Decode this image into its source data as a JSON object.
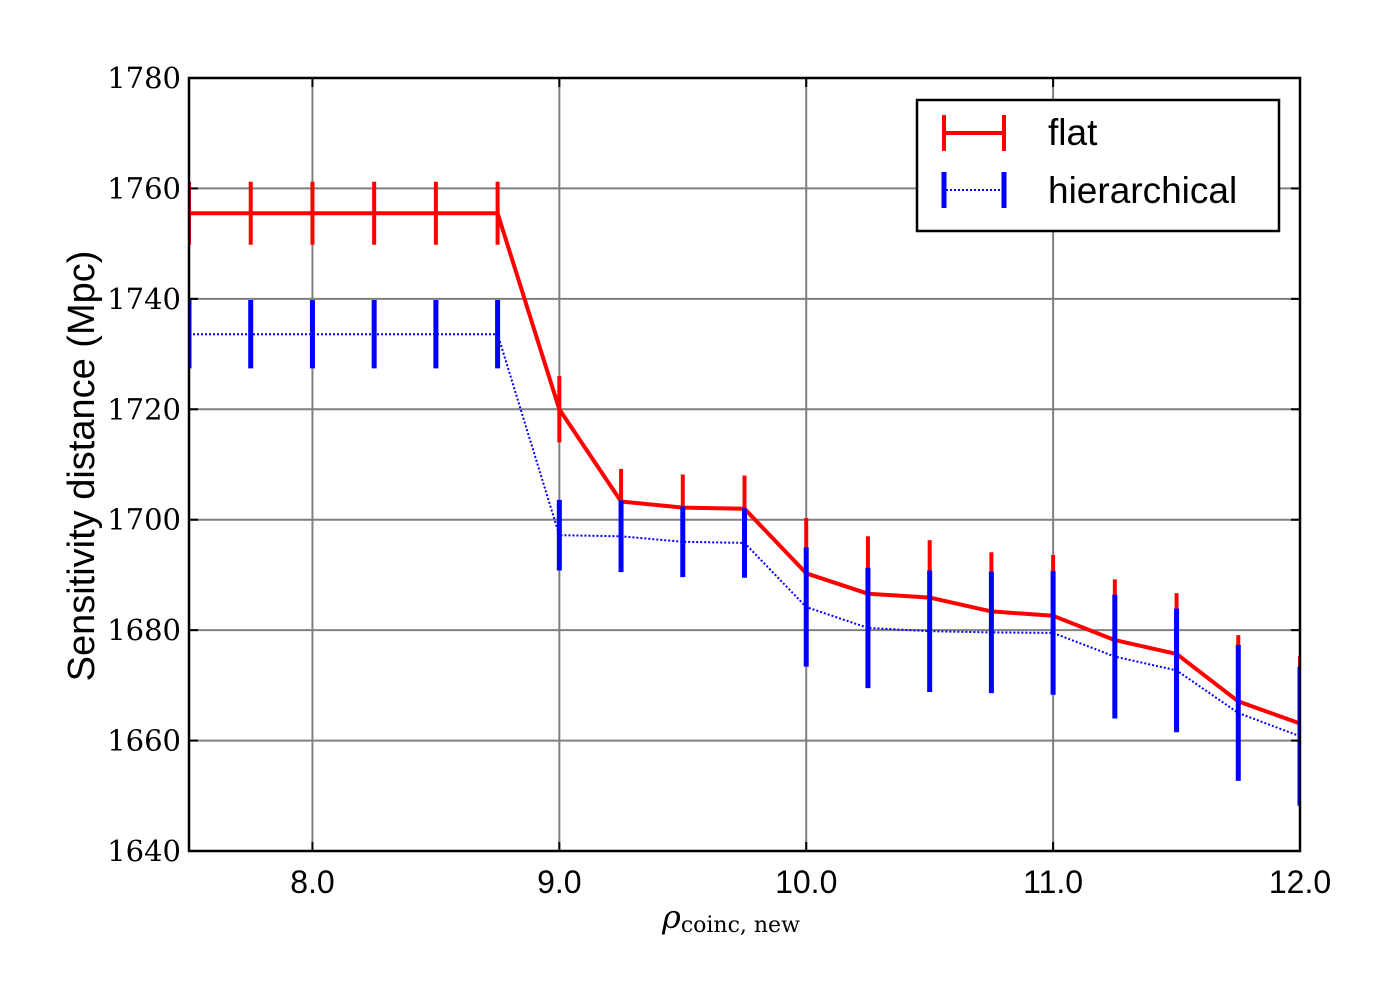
{
  "chart_data": {
    "type": "line",
    "xlabel": "ρ",
    "xlabel_sub": "coinc, new",
    "ylabel": "Sensitivity distance (Mpc)",
    "xlim": [
      7.5,
      12.0
    ],
    "ylim": [
      1640,
      1780
    ],
    "xticks": [
      8.0,
      9.0,
      10.0,
      11.0,
      12.0
    ],
    "xtick_labels": [
      "8.0",
      "9.0",
      "10.0",
      "11.0",
      "12.0"
    ],
    "yticks": [
      1640,
      1660,
      1680,
      1700,
      1720,
      1740,
      1760,
      1780
    ],
    "ytick_labels": [
      "1640",
      "1660",
      "1680",
      "1700",
      "1720",
      "1740",
      "1760",
      "1780"
    ],
    "grid": true,
    "legend_position": "top-right",
    "x": [
      7.5,
      7.75,
      8.0,
      8.25,
      8.5,
      8.75,
      9.0,
      9.25,
      9.5,
      9.75,
      10.0,
      10.25,
      10.5,
      10.75,
      11.0,
      11.25,
      11.5,
      11.75,
      12.0
    ],
    "series": [
      {
        "name": "flat",
        "color": "#ff0000",
        "style": "solid",
        "values": [
          1755.5,
          1755.5,
          1755.5,
          1755.5,
          1755.5,
          1755.5,
          1720.0,
          1703.3,
          1702.2,
          1702.0,
          1690.3,
          1686.6,
          1685.9,
          1683.4,
          1682.6,
          1678.2,
          1675.7,
          1667.1,
          1663.1
        ],
        "errors": [
          5.7,
          5.7,
          5.7,
          5.7,
          5.7,
          5.7,
          6.0,
          5.9,
          6.0,
          6.0,
          10.0,
          10.4,
          10.4,
          10.7,
          11.0,
          11.0,
          11.0,
          12.0,
          12.2
        ]
      },
      {
        "name": "hierarchical",
        "color": "#0000ff",
        "style": "dotted",
        "values": [
          1733.6,
          1733.6,
          1733.6,
          1733.6,
          1733.6,
          1733.6,
          1697.2,
          1697.0,
          1696.0,
          1695.8,
          1684.2,
          1680.4,
          1679.8,
          1679.6,
          1679.5,
          1675.2,
          1672.7,
          1665.0,
          1660.8
        ],
        "errors": [
          6.2,
          6.2,
          6.2,
          6.2,
          6.2,
          6.2,
          6.4,
          6.5,
          6.4,
          6.3,
          10.8,
          10.9,
          11.0,
          11.0,
          11.2,
          11.2,
          11.2,
          12.3,
          12.6
        ]
      }
    ]
  }
}
